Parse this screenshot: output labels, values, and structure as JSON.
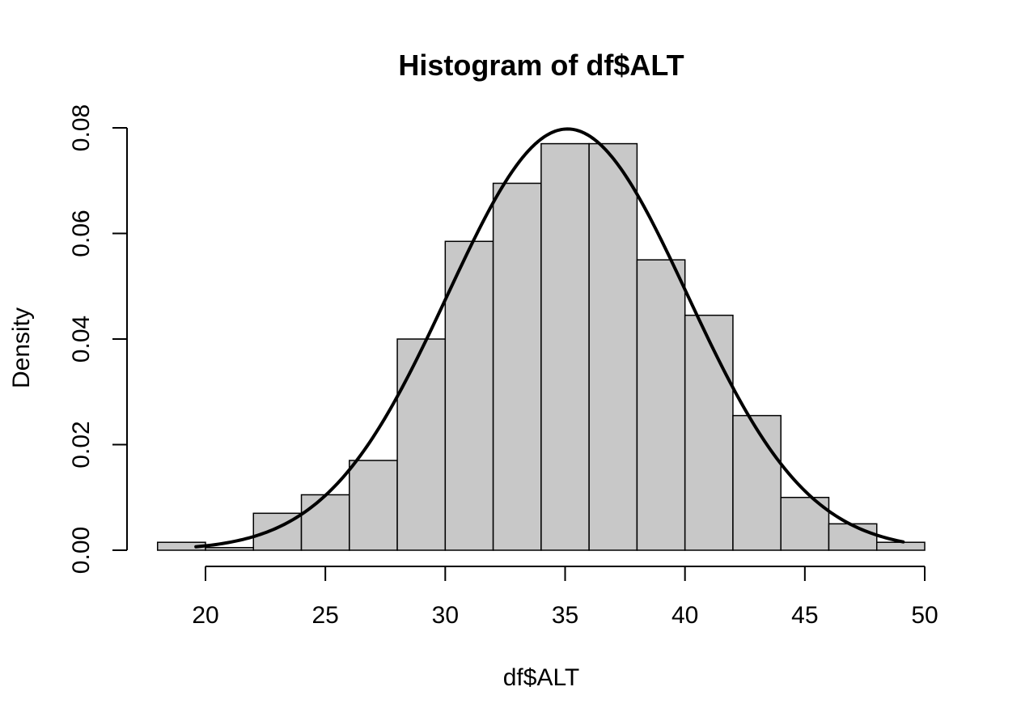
{
  "chart_data": {
    "type": "bar",
    "title": "Histogram of df$ALT",
    "xlabel": "df$ALT",
    "ylabel": "Density",
    "xlim": [
      18,
      50
    ],
    "ylim": [
      0,
      0.08
    ],
    "x_ticks": [
      20,
      25,
      30,
      35,
      40,
      45,
      50
    ],
    "x_tick_labels": [
      "20",
      "25",
      "30",
      "35",
      "40",
      "45",
      "50"
    ],
    "y_ticks": [
      0,
      0.02,
      0.04,
      0.06,
      0.08
    ],
    "y_tick_labels": [
      "0.00",
      "0.02",
      "0.04",
      "0.06",
      "0.08"
    ],
    "bins": [
      {
        "start": 18,
        "end": 20,
        "density": 0.0015
      },
      {
        "start": 20,
        "end": 22,
        "density": 0.0005
      },
      {
        "start": 22,
        "end": 24,
        "density": 0.007
      },
      {
        "start": 24,
        "end": 26,
        "density": 0.0105
      },
      {
        "start": 26,
        "end": 28,
        "density": 0.017
      },
      {
        "start": 28,
        "end": 30,
        "density": 0.04
      },
      {
        "start": 30,
        "end": 32,
        "density": 0.0585
      },
      {
        "start": 32,
        "end": 34,
        "density": 0.0695
      },
      {
        "start": 34,
        "end": 36,
        "density": 0.077
      },
      {
        "start": 36,
        "end": 38,
        "density": 0.077
      },
      {
        "start": 38,
        "end": 40,
        "density": 0.055
      },
      {
        "start": 40,
        "end": 42,
        "density": 0.0445
      },
      {
        "start": 42,
        "end": 44,
        "density": 0.0255
      },
      {
        "start": 44,
        "end": 46,
        "density": 0.01
      },
      {
        "start": 46,
        "end": 48,
        "density": 0.005
      },
      {
        "start": 48,
        "end": 50,
        "density": 0.0015
      }
    ],
    "overlay_curve": {
      "type": "normal-density",
      "mean": 35.1,
      "sd": 5.0,
      "x_range": [
        19.6,
        49.1
      ]
    },
    "grid": false,
    "legend": "none",
    "colors": {
      "bar_fill": "#c8c8c8",
      "bar_border": "#000000",
      "curve": "#000000"
    }
  }
}
